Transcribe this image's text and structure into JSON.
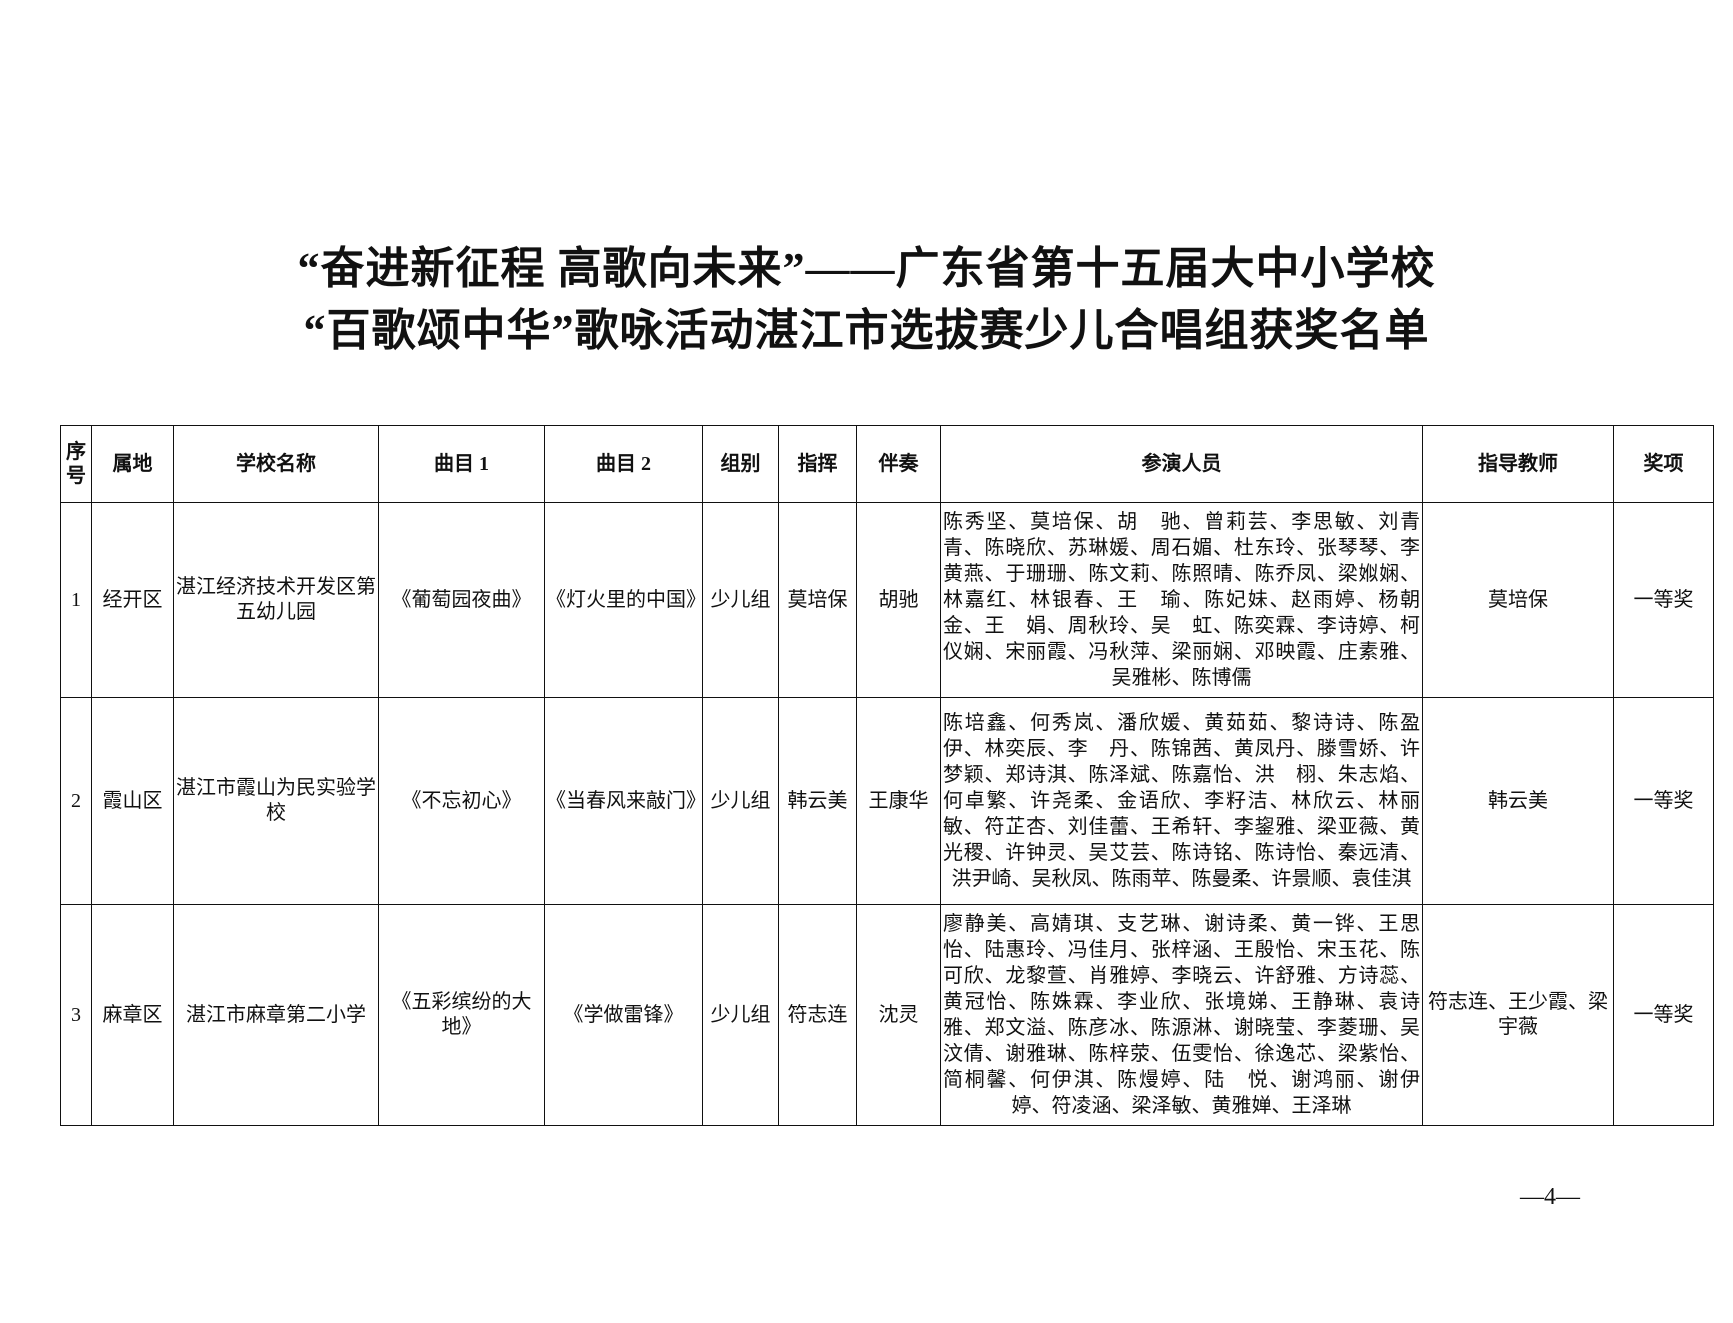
{
  "title": {
    "line1": "“奋进新征程  高歌向未来”——广东省第十五届大中小学校",
    "line2": "“百歌颂中华”歌咏活动湛江市选拔赛少儿合唱组获奖名单"
  },
  "table": {
    "headers": [
      "序号",
      "属地",
      "学校名称",
      "曲目 1",
      "曲目 2",
      "组别",
      "指挥",
      "伴奏",
      "参演人员",
      "指导教师",
      "奖项"
    ],
    "rows": [
      {
        "seq": "1",
        "district": "经开区",
        "school": "湛江经济技术开发区第五幼儿园",
        "song1": "《葡萄园夜曲》",
        "song2": "《灯火里的中国》",
        "group": "少儿组",
        "conductor": "莫培保",
        "accompanist": "胡驰",
        "participants": [
          "陈秀坚",
          "莫培保",
          "胡　驰",
          "曾莉芸",
          "李思敏",
          "刘青青",
          "陈晓欣",
          "苏琳媛",
          "周石媚",
          "杜东玲",
          "张琴琴",
          "李黄燕",
          "于珊珊",
          "陈文莉",
          "陈照晴",
          "陈乔凤",
          "梁娰娴",
          "林嘉红",
          "林银春",
          "王　瑜",
          "陈妃妹",
          "赵雨婷",
          "杨朝金",
          "王　娟",
          "周秋玲",
          "吴　虹",
          "陈奕霖",
          "李诗婷",
          "柯仪娴",
          "宋丽霞",
          "冯秋萍",
          "梁丽娴",
          "邓映霞",
          "庄素雅",
          "吴雅彬",
          "陈博儒"
        ],
        "teacher": "莫培保",
        "award": "一等奖"
      },
      {
        "seq": "2",
        "district": "霞山区",
        "school": "湛江市霞山为民实验学校",
        "song1": "《不忘初心》",
        "song2": "《当春风来敲门》",
        "group": "少儿组",
        "conductor": "韩云美",
        "accompanist": "王康华",
        "participants": [
          "陈培鑫",
          "何秀岚",
          "潘欣媛",
          "黄茹茹",
          "黎诗诗",
          "陈盈伊",
          "林奕辰",
          "李　丹",
          "陈锦茜",
          "黄凤丹",
          "滕雪娇",
          "许梦颖",
          "郑诗淇",
          "陈泽斌",
          "陈嘉怡",
          "洪　栩",
          "朱志焰",
          "何卓繁",
          "许尧柔",
          "金语欣",
          "李籽洁",
          "林欣云",
          "林丽敏",
          "符芷杏",
          "刘佳蕾",
          "王希轩",
          "李鋆雅",
          "梁亚薇",
          "黄光稷",
          "许钟灵",
          "吴艾芸",
          "陈诗铭",
          "陈诗怡",
          "秦远清",
          "洪尹崎",
          "吴秋凤",
          "陈雨苹",
          "陈曼柔",
          "许景顺",
          "袁佳淇"
        ],
        "teacher": "韩云美",
        "award": "一等奖"
      },
      {
        "seq": "3",
        "district": "麻章区",
        "school": "湛江市麻章第二小学",
        "song1": "《五彩缤纷的大地》",
        "song2": "《学做雷锋》",
        "group": "少儿组",
        "conductor": "符志连",
        "accompanist": "沈灵",
        "participants": [
          "廖静美",
          "高婧琪",
          "支艺琳",
          "谢诗柔",
          "黄一铧",
          "王思怡",
          "陆惠玲",
          "冯佳月",
          "张梓涵",
          "王殷怡",
          "宋玉花",
          "陈可欣",
          "龙黎萱",
          "肖雅婷",
          "李晓云",
          "许舒雅",
          "方诗蕊",
          "黄冠怡",
          "陈姝霖",
          "李业欣",
          "张境娣",
          "王静琳",
          "袁诗雅",
          "郑文溢",
          "陈彦冰",
          "陈源淋",
          "谢晓莹",
          "李菱珊",
          "吴汶倩",
          "谢雅琳",
          "陈梓荥",
          "伍雯怡",
          "徐逸芯",
          "梁紫怡",
          "简桐馨",
          "何伊淇",
          "陈熳婷",
          "陆　悦",
          "谢鸿丽",
          "谢伊婷",
          "符凌涵",
          "梁泽敏",
          "黄雅婵",
          "王泽琳"
        ],
        "teacher": "符志连、王少霞、梁宇薇",
        "award": "一等奖"
      }
    ]
  },
  "page_number": "—4—"
}
